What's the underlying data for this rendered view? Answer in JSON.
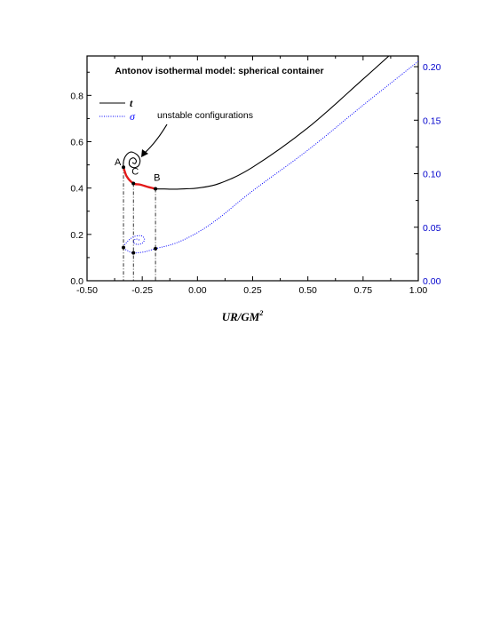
{
  "chart_data": {
    "type": "line",
    "title": "Antonov isothermal model: spherical container",
    "xlabel": "UR/GM",
    "xlabel_superscript": "2",
    "xlim": [
      -0.5,
      1.0
    ],
    "ylim_left": [
      0.0,
      0.97
    ],
    "ylim_right": [
      0.0,
      0.21
    ],
    "x_ticks": [
      "-0.50",
      "-0.25",
      "0.00",
      "0.25",
      "0.50",
      "0.75",
      "1.00"
    ],
    "x_tick_values": [
      -0.5,
      -0.25,
      0,
      0.25,
      0.5,
      0.75,
      1.0
    ],
    "y_left_ticks": [
      "0.0",
      "0.2",
      "0.4",
      "0.6",
      "0.8"
    ],
    "y_left_tick_values": [
      0,
      0.2,
      0.4,
      0.6,
      0.8
    ],
    "y_right_ticks": [
      "0.00",
      "0.05",
      "0.10",
      "0.15",
      "0.20"
    ],
    "y_right_tick_values": [
      0,
      0.05,
      0.1,
      0.15,
      0.2
    ],
    "legend_placement": "top-left",
    "colors": {
      "t": "#000000",
      "sigma": "#0000ff",
      "unstable": "#e31a1a",
      "right_axis": "#0000cc"
    },
    "series": [
      {
        "name": "t",
        "axis": "left",
        "style": "solid",
        "points": [
          [
            0.89,
            0.99
          ],
          [
            0.75,
            0.87
          ],
          [
            0.5,
            0.66
          ],
          [
            0.25,
            0.49
          ],
          [
            0.1,
            0.42
          ],
          [
            0.0,
            0.4
          ],
          [
            -0.05,
            0.397
          ],
          [
            -0.1,
            0.395
          ],
          [
            -0.15,
            0.396
          ],
          [
            -0.19,
            0.397
          ],
          [
            -0.225,
            0.405
          ],
          [
            -0.26,
            0.415
          ],
          [
            -0.29,
            0.42
          ],
          [
            -0.32,
            0.45
          ],
          [
            -0.335,
            0.49
          ],
          [
            -0.33,
            0.53
          ],
          [
            -0.305,
            0.555
          ],
          [
            -0.275,
            0.545
          ],
          [
            -0.26,
            0.52
          ],
          [
            -0.268,
            0.495
          ],
          [
            -0.29,
            0.488
          ],
          [
            -0.308,
            0.5
          ],
          [
            -0.306,
            0.522
          ],
          [
            -0.289,
            0.53
          ],
          [
            -0.277,
            0.518
          ],
          [
            -0.283,
            0.505
          ],
          [
            -0.295,
            0.51
          ]
        ]
      },
      {
        "name": "σ",
        "axis": "right",
        "style": "dotted",
        "points": [
          [
            1.0,
            0.205
          ],
          [
            0.75,
            0.164
          ],
          [
            0.5,
            0.122
          ],
          [
            0.25,
            0.084
          ],
          [
            0.1,
            0.059
          ],
          [
            0.0,
            0.045
          ],
          [
            -0.1,
            0.035
          ],
          [
            -0.19,
            0.03
          ],
          [
            -0.24,
            0.027
          ],
          [
            -0.29,
            0.026
          ],
          [
            -0.315,
            0.028
          ],
          [
            -0.335,
            0.031
          ],
          [
            -0.32,
            0.036
          ],
          [
            -0.29,
            0.041
          ],
          [
            -0.255,
            0.042
          ],
          [
            -0.24,
            0.039
          ],
          [
            -0.25,
            0.035
          ],
          [
            -0.275,
            0.034
          ],
          [
            -0.29,
            0.036
          ],
          [
            -0.28,
            0.039
          ],
          [
            -0.262,
            0.038
          ]
        ]
      }
    ],
    "unstable_segment": {
      "label": "unstable configurations",
      "points": [
        [
          -0.335,
          0.49
        ],
        [
          -0.32,
          0.45
        ],
        [
          -0.29,
          0.42
        ],
        [
          -0.26,
          0.415
        ],
        [
          -0.225,
          0.405
        ],
        [
          -0.19,
          0.397
        ]
      ]
    },
    "markers": [
      {
        "label": "A",
        "x": -0.335,
        "t": 0.49,
        "sigma": 0.031
      },
      {
        "label": "C",
        "x": -0.29,
        "t": 0.42,
        "sigma": 0.026
      },
      {
        "label": "B",
        "x": -0.19,
        "t": 0.397,
        "sigma": 0.03
      }
    ],
    "annotation": {
      "text": "unstable configurations",
      "arrow_to": [
        -0.27,
        0.57
      ]
    }
  }
}
